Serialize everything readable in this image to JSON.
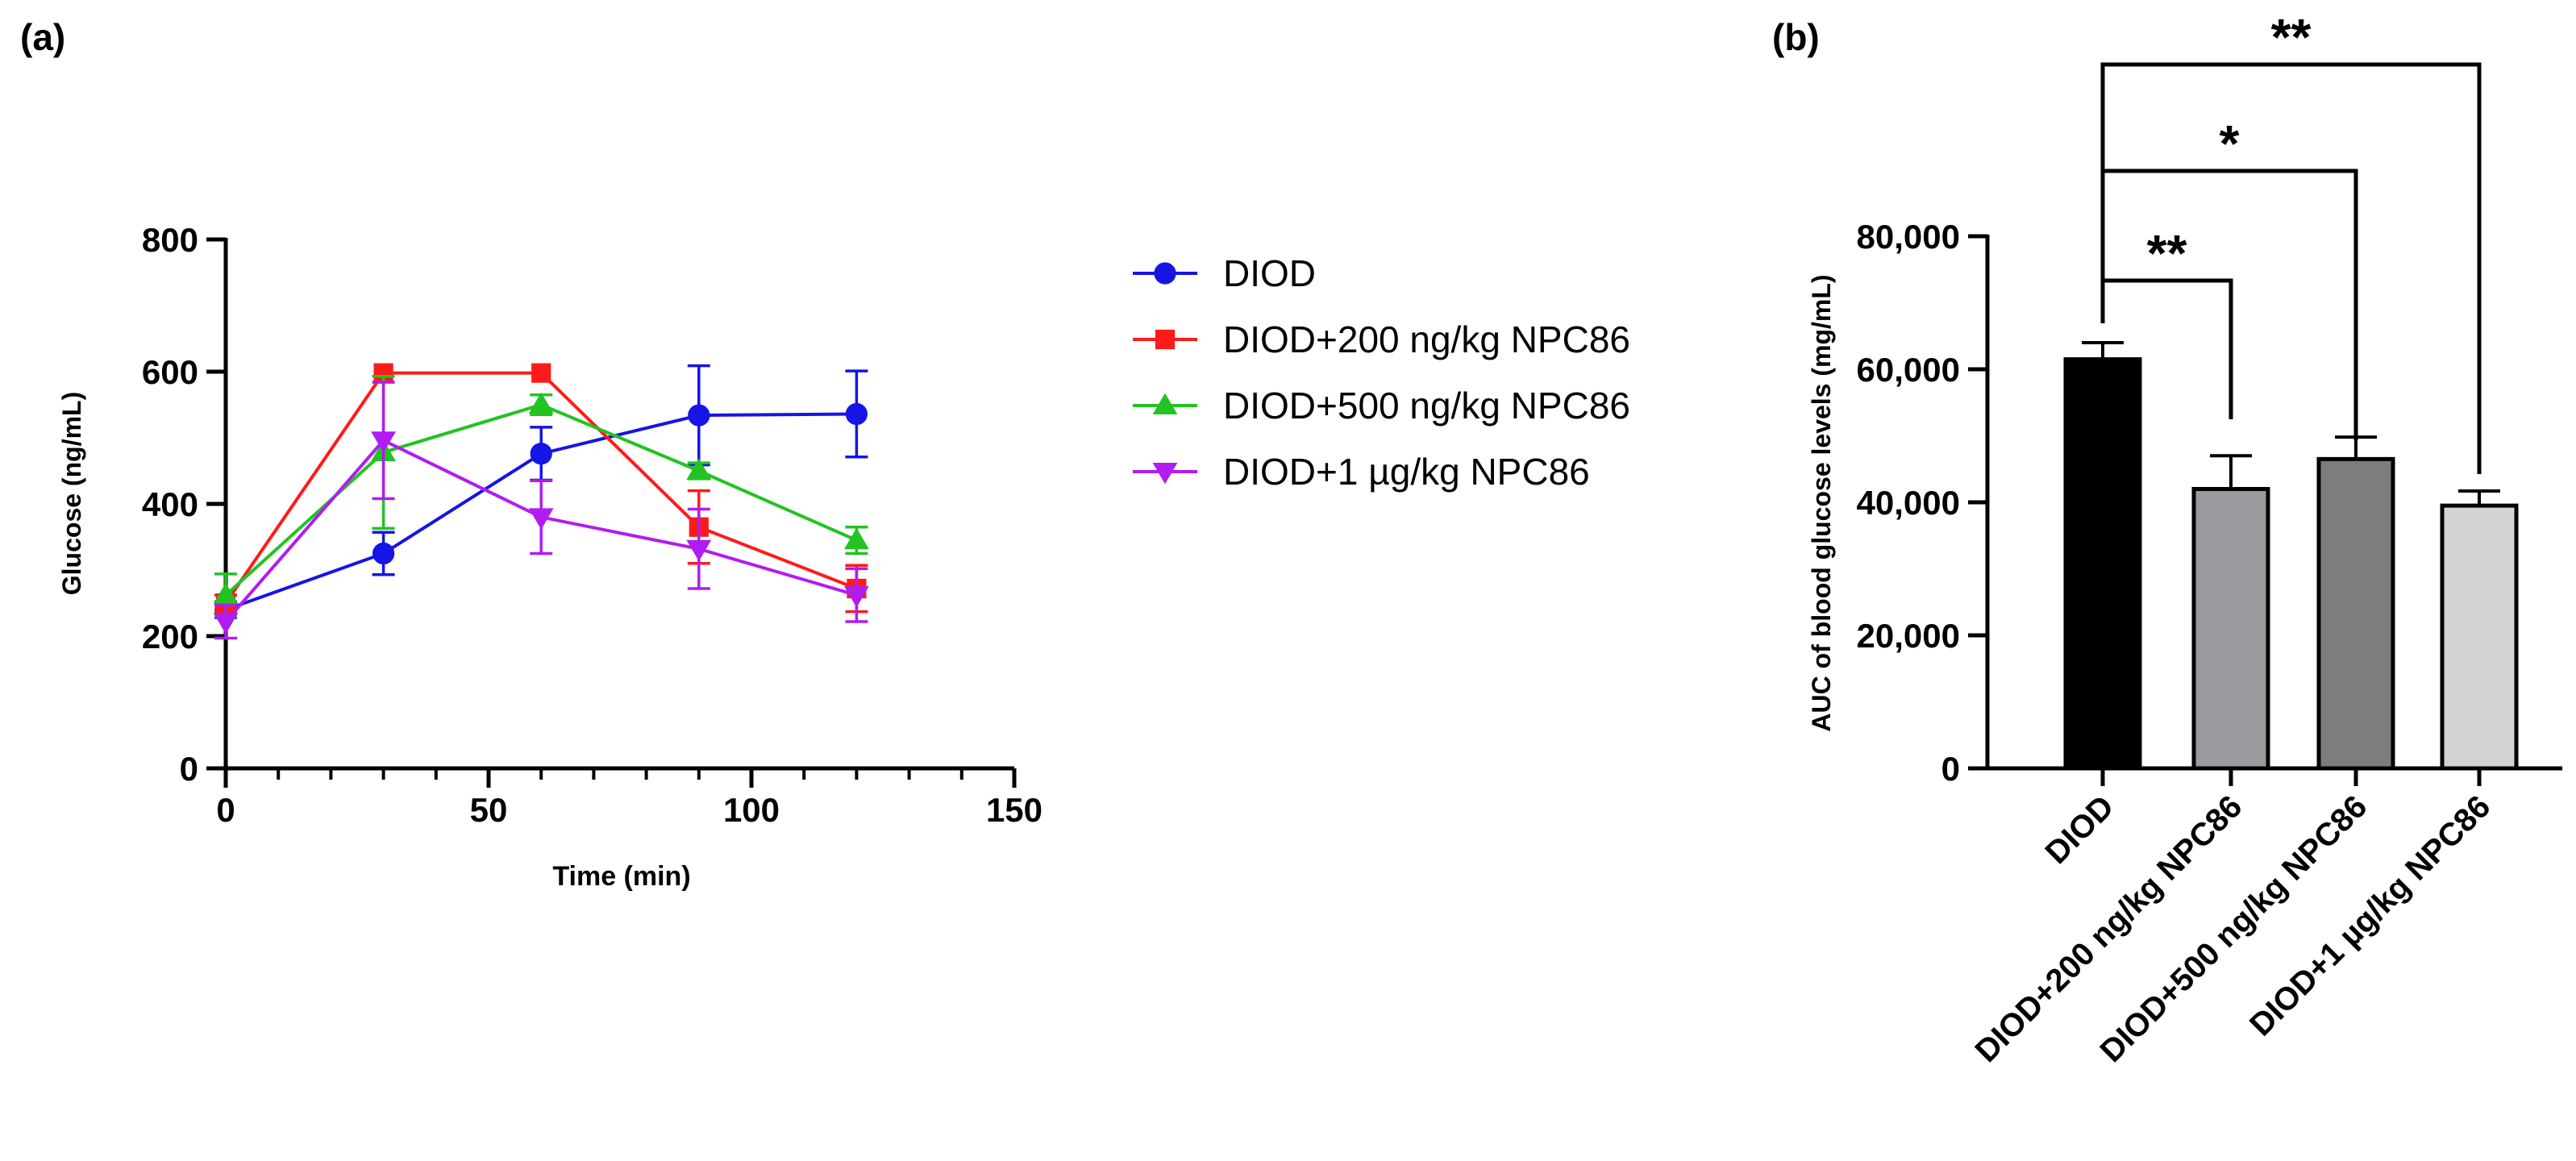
{
  "chart_data": [
    {
      "panel": "(a)",
      "type": "line",
      "xlabel": "Time (min)",
      "ylabel": "Glucose (ng/mL)",
      "xlim": [
        0,
        150
      ],
      "ylim": [
        0,
        800
      ],
      "xticks": [
        0,
        50,
        100,
        150
      ],
      "yticks": [
        0,
        200,
        400,
        600,
        800
      ],
      "x": [
        0,
        30,
        60,
        90,
        120
      ],
      "legend_position": "right",
      "series": [
        {
          "name": "DIOD",
          "color": "#1515e6",
          "marker": "circle",
          "values": [
            240,
            325,
            476,
            534,
            536
          ],
          "errors": [
            12,
            32,
            40,
            75,
            65
          ]
        },
        {
          "name": "DIOD+200 ng/kg NPC86",
          "color": "#ff1a1a",
          "marker": "square",
          "values": [
            250,
            598,
            598,
            365,
            272
          ],
          "errors": [
            12,
            0,
            0,
            55,
            35
          ]
        },
        {
          "name": "DIOD+500 ng/kg NPC86",
          "color": "#22c322",
          "marker": "triangle-up",
          "values": [
            262,
            478,
            550,
            450,
            345
          ],
          "errors": [
            32,
            115,
            15,
            12,
            20
          ]
        },
        {
          "name": "DIOD+1 µg/kg NPC86",
          "color": "#b11cf0",
          "marker": "triangle-down",
          "values": [
            222,
            496,
            380,
            332,
            262
          ],
          "errors": [
            25,
            88,
            55,
            60,
            40
          ]
        }
      ]
    },
    {
      "panel": "(b)",
      "type": "bar",
      "ylabel": "AUC of blood glucose levels (mg/mL)",
      "ylim": [
        0,
        80000
      ],
      "yticks": [
        0,
        20000,
        40000,
        60000,
        80000
      ],
      "ytick_labels": [
        "0",
        "20,000",
        "40,000",
        "60,000",
        "80,000"
      ],
      "categories": [
        "DIOD",
        "DIOD+200 ng/kg NPC86",
        "DIOD+500 ng/kg NPC86",
        "DIOD+1 µg/kg NPC86"
      ],
      "values": [
        61500,
        42000,
        46500,
        39500
      ],
      "errors": [
        2500,
        5000,
        3300,
        2200
      ],
      "colors": [
        "#000000",
        "#9a9a9f",
        "#7d7d7d",
        "#d3d3d3"
      ],
      "significance": [
        {
          "from": "DIOD",
          "to": "DIOD+200 ng/kg NPC86",
          "label": "**"
        },
        {
          "from": "DIOD",
          "to": "DIOD+500 ng/kg NPC86",
          "label": "*"
        },
        {
          "from": "DIOD",
          "to": "DIOD+1 µg/kg NPC86",
          "label": "**"
        }
      ]
    }
  ]
}
